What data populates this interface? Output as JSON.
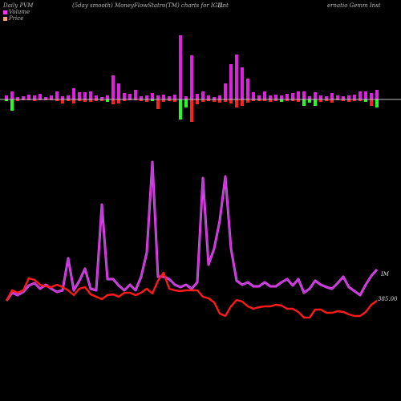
{
  "header": {
    "left": "Daily PVM",
    "center": "(5day smooth) MoneyFlowStatro(TM) charts for IGIL",
    "right_a": "(Int",
    "right_b": "ernatio  Gemm Inst"
  },
  "legend": {
    "volume_label": "Volume",
    "price_label": "Price",
    "volume_color": "#ff33ff",
    "price_color": "#f0a080"
  },
  "labels": {
    "mfi_end": "IM",
    "price_end": "385.00"
  },
  "colors": {
    "background": "#000000",
    "axis": "#c0c0c0",
    "bar_magenta": "#e020e0",
    "bar_red": "#ff2020",
    "bar_green": "#22ff22",
    "mfi_line": "#b040d0",
    "mfi_glow": "#ff40ff",
    "price_line": "#ff1a1a"
  },
  "chart_data": {
    "type": "line",
    "x": [
      1,
      2,
      3,
      4,
      5,
      6,
      7,
      8,
      9,
      10,
      11,
      12,
      13,
      14,
      15,
      16,
      17,
      18,
      19,
      20,
      21,
      22,
      23,
      24,
      25,
      26,
      27,
      28,
      29,
      30,
      31,
      32,
      33,
      34,
      35,
      36,
      37,
      38,
      39,
      40,
      41,
      42,
      43,
      44,
      45,
      46,
      47,
      48,
      49,
      50,
      51,
      52,
      53,
      54,
      55,
      56,
      57,
      58,
      59,
      60,
      61,
      62,
      63,
      64,
      65,
      66,
      67
    ],
    "bars": {
      "up": [
        5,
        10,
        3,
        4,
        6,
        5,
        7,
        3,
        5,
        10,
        4,
        5,
        14,
        9,
        9,
        10,
        5,
        3,
        5,
        30,
        20,
        8,
        7,
        12,
        4,
        5,
        8,
        5,
        6,
        4,
        6,
        80,
        4,
        55,
        7,
        10,
        5,
        3,
        5,
        20,
        44,
        56,
        40,
        26,
        9,
        5,
        10,
        5,
        6,
        5,
        7,
        8,
        10,
        10,
        4,
        9,
        5,
        4,
        8,
        5,
        4,
        5,
        6,
        10,
        10,
        8,
        12
      ],
      "down": [
        2,
        14,
        2,
        1,
        1,
        2,
        1,
        1,
        1,
        2,
        5,
        2,
        5,
        2,
        3,
        3,
        2,
        2,
        3,
        6,
        5,
        2,
        1,
        1,
        2,
        3,
        2,
        12,
        3,
        2,
        3,
        25,
        10,
        28,
        6,
        3,
        2,
        3,
        4,
        3,
        5,
        10,
        8,
        4,
        2,
        2,
        2,
        3,
        2,
        3,
        2,
        2,
        3,
        8,
        4,
        8,
        3,
        2,
        4,
        1,
        2,
        3,
        2,
        2,
        3,
        8,
        10
      ],
      "down_color": [
        "green",
        "green",
        "red",
        "red",
        "red",
        "red",
        "red",
        "red",
        "red",
        "red",
        "red",
        "red",
        "red",
        "red",
        "red",
        "red",
        "red",
        "red",
        "green",
        "red",
        "red",
        "red",
        "red",
        "red",
        "red",
        "red",
        "green",
        "red",
        "red",
        "red",
        "red",
        "green",
        "green",
        "red",
        "red",
        "red",
        "red",
        "red",
        "red",
        "red",
        "red",
        "red",
        "red",
        "red",
        "red",
        "red",
        "red",
        "red",
        "red",
        "green",
        "red",
        "red",
        "red",
        "green",
        "green",
        "green",
        "red",
        "red",
        "red",
        "red",
        "red",
        "red",
        "red",
        "red",
        "green",
        "red",
        "green"
      ]
    },
    "series": [
      {
        "values": [
          375,
          365,
          368,
          364,
          356,
          353,
          360,
          355,
          360,
          364,
          362,
          322,
          362,
          350,
          335,
          360,
          362,
          255,
          348,
          348,
          356,
          362,
          355,
          362,
          345,
          315,
          202,
          345,
          345,
          348,
          355,
          358,
          355,
          360,
          352,
          222,
          330,
          310,
          275,
          220,
          310,
          350,
          355,
          352,
          357,
          357,
          352,
          357,
          357,
          352,
          348,
          356,
          348,
          365,
          360,
          350,
          355,
          358,
          360,
          353,
          345,
          358,
          363,
          368,
          355,
          344,
          336
        ]
      },
      {
        "values": [
          375,
          362,
          365,
          362,
          347,
          349,
          355,
          357,
          358,
          355,
          358,
          362,
          368,
          360,
          358,
          367,
          370,
          373,
          368,
          367,
          370,
          365,
          365,
          368,
          365,
          360,
          366,
          350,
          340,
          360,
          362,
          363,
          362,
          362,
          362,
          370,
          372,
          377,
          391,
          394,
          382,
          374,
          376,
          382,
          385,
          383,
          382,
          382,
          380,
          381,
          385,
          385,
          389,
          396,
          396,
          386,
          386,
          390,
          390,
          388,
          389,
          392,
          394,
          394,
          389,
          380,
          375
        ]
      }
    ],
    "ylim": [
      130,
      415
    ]
  }
}
